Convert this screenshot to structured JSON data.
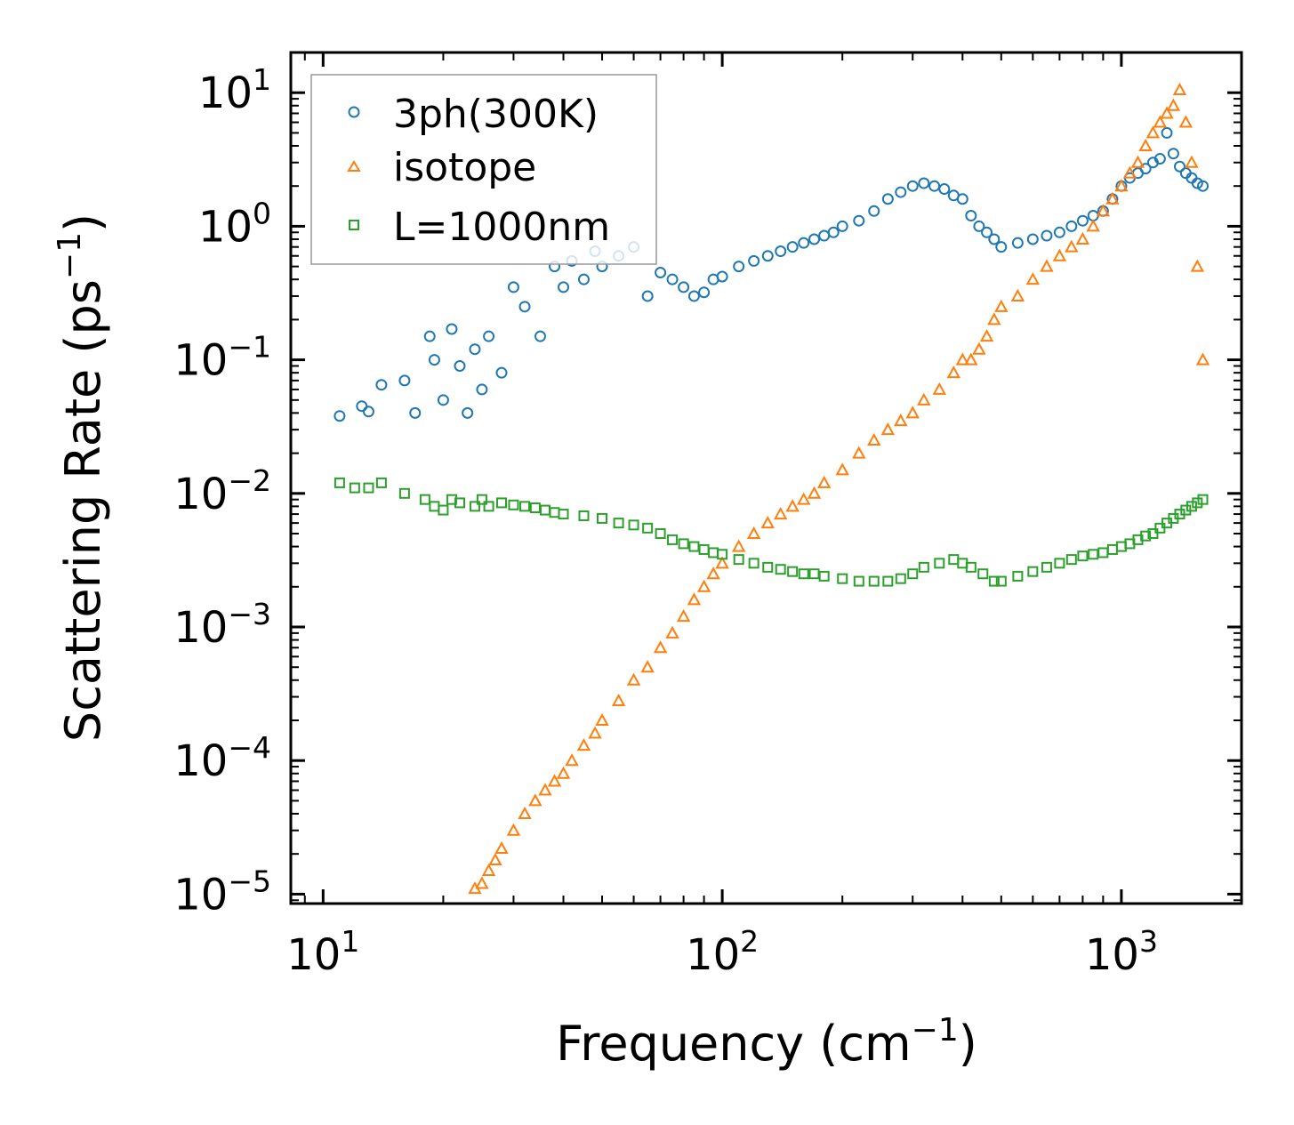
{
  "chart_data": {
    "type": "scatter",
    "xscale": "log",
    "yscale": "log",
    "xlim": [
      8.3,
      2000
    ],
    "ylim": [
      8.5e-06,
      20
    ],
    "xlabel": "Frequency (cm",
    "xlabel_exp": "−1",
    "xlabel_close": ")",
    "ylabel": "Scattering Rate (ps",
    "ylabel_exp": "−1",
    "ylabel_close": ")",
    "xticks": [
      {
        "value": 10,
        "base": "10",
        "exp": "1"
      },
      {
        "value": 100,
        "base": "10",
        "exp": "2"
      },
      {
        "value": 1000,
        "base": "10",
        "exp": "3"
      }
    ],
    "yticks": [
      {
        "value": 10,
        "base": "10",
        "exp": "1"
      },
      {
        "value": 1,
        "base": "10",
        "exp": "0"
      },
      {
        "value": 0.1,
        "base": "10",
        "exp": "−1"
      },
      {
        "value": 0.01,
        "base": "10",
        "exp": "−2"
      },
      {
        "value": 0.001,
        "base": "10",
        "exp": "−3"
      },
      {
        "value": 0.0001,
        "base": "10",
        "exp": "−4"
      },
      {
        "value": 1e-05,
        "base": "10",
        "exp": "−5"
      }
    ],
    "legend": {
      "position": "top-left"
    },
    "series": [
      {
        "name": "3ph(300K)",
        "marker": "circle",
        "color": "#1f77b4",
        "x": [
          11,
          12.5,
          13,
          14,
          16,
          17,
          18.5,
          19,
          20,
          21,
          22,
          23,
          24,
          25,
          26,
          28,
          30,
          32,
          35,
          38,
          40,
          42,
          45,
          48,
          50,
          55,
          60,
          65,
          70,
          75,
          80,
          85,
          90,
          95,
          100,
          110,
          120,
          130,
          140,
          150,
          160,
          170,
          180,
          190,
          200,
          220,
          240,
          260,
          280,
          300,
          320,
          340,
          360,
          380,
          400,
          420,
          440,
          460,
          480,
          500,
          550,
          600,
          650,
          700,
          750,
          800,
          850,
          900,
          950,
          1000,
          1050,
          1100,
          1150,
          1200,
          1250,
          1300,
          1350,
          1400,
          1450,
          1500,
          1550,
          1600
        ],
        "y": [
          0.038,
          0.045,
          0.041,
          0.065,
          0.07,
          0.04,
          0.15,
          0.1,
          0.05,
          0.17,
          0.09,
          0.04,
          0.12,
          0.06,
          0.15,
          0.08,
          0.35,
          0.25,
          0.15,
          0.5,
          0.35,
          0.55,
          0.4,
          0.65,
          0.5,
          0.6,
          0.7,
          0.3,
          0.45,
          0.4,
          0.35,
          0.3,
          0.32,
          0.4,
          0.42,
          0.5,
          0.55,
          0.6,
          0.65,
          0.7,
          0.75,
          0.8,
          0.85,
          0.9,
          1.0,
          1.1,
          1.3,
          1.6,
          1.8,
          2.0,
          2.1,
          2.0,
          1.9,
          1.7,
          1.6,
          1.2,
          1.0,
          0.9,
          0.8,
          0.7,
          0.75,
          0.8,
          0.85,
          0.9,
          1.0,
          1.1,
          1.2,
          1.3,
          1.6,
          2.0,
          2.3,
          2.5,
          2.7,
          3.0,
          3.2,
          5.0,
          3.5,
          2.8,
          2.5,
          2.3,
          2.1,
          2.0
        ]
      },
      {
        "name": "isotope",
        "marker": "triangle",
        "color": "#ff7f0e",
        "x": [
          24,
          25,
          26,
          27,
          28,
          30,
          32,
          34,
          36,
          38,
          40,
          42,
          45,
          48,
          50,
          55,
          60,
          65,
          70,
          75,
          80,
          85,
          90,
          95,
          100,
          110,
          120,
          130,
          140,
          150,
          160,
          170,
          180,
          200,
          220,
          240,
          260,
          280,
          300,
          320,
          350,
          380,
          400,
          420,
          440,
          460,
          480,
          500,
          550,
          600,
          650,
          700,
          750,
          800,
          850,
          900,
          950,
          1000,
          1050,
          1100,
          1150,
          1200,
          1250,
          1300,
          1350,
          1400,
          1450,
          1500,
          1550,
          1600
        ],
        "y": [
          1.1e-05,
          1.2e-05,
          1.5e-05,
          1.8e-05,
          2.2e-05,
          3e-05,
          4e-05,
          5e-05,
          6e-05,
          7e-05,
          8e-05,
          0.0001,
          0.00013,
          0.00016,
          0.0002,
          0.00028,
          0.0004,
          0.0005,
          0.0007,
          0.0009,
          0.0012,
          0.0016,
          0.002,
          0.0025,
          0.003,
          0.004,
          0.005,
          0.006,
          0.007,
          0.008,
          0.009,
          0.01,
          0.012,
          0.015,
          0.02,
          0.025,
          0.03,
          0.035,
          0.04,
          0.05,
          0.06,
          0.08,
          0.1,
          0.1,
          0.12,
          0.15,
          0.2,
          0.25,
          0.3,
          0.4,
          0.5,
          0.6,
          0.7,
          0.8,
          1.0,
          1.3,
          1.6,
          2.0,
          2.5,
          3.0,
          4.0,
          5.0,
          6.0,
          7.0,
          8.0,
          10.5,
          6.0,
          3.0,
          0.5,
          0.1
        ]
      },
      {
        "name": "L=1000nm",
        "marker": "square",
        "color": "#2ca02c",
        "x": [
          11,
          12,
          13,
          14,
          16,
          18,
          19,
          20,
          21,
          22,
          24,
          25,
          26,
          28,
          30,
          32,
          34,
          36,
          38,
          40,
          45,
          50,
          55,
          60,
          65,
          70,
          75,
          80,
          85,
          90,
          95,
          100,
          110,
          120,
          130,
          140,
          150,
          160,
          170,
          180,
          200,
          220,
          240,
          260,
          280,
          300,
          320,
          350,
          380,
          400,
          420,
          450,
          480,
          500,
          550,
          600,
          650,
          700,
          750,
          800,
          850,
          900,
          950,
          1000,
          1050,
          1100,
          1150,
          1200,
          1250,
          1300,
          1350,
          1400,
          1450,
          1500,
          1550,
          1600
        ],
        "y": [
          0.012,
          0.011,
          0.011,
          0.012,
          0.01,
          0.009,
          0.008,
          0.0075,
          0.009,
          0.0085,
          0.008,
          0.009,
          0.008,
          0.0085,
          0.0082,
          0.008,
          0.0078,
          0.0075,
          0.0072,
          0.007,
          0.0068,
          0.0065,
          0.006,
          0.0058,
          0.0055,
          0.005,
          0.0045,
          0.0042,
          0.004,
          0.0038,
          0.0036,
          0.0035,
          0.0032,
          0.003,
          0.0028,
          0.0027,
          0.0026,
          0.0025,
          0.0025,
          0.0024,
          0.0023,
          0.0022,
          0.0022,
          0.0022,
          0.0023,
          0.0025,
          0.0028,
          0.003,
          0.0032,
          0.003,
          0.0028,
          0.0025,
          0.0022,
          0.0022,
          0.0024,
          0.0026,
          0.0028,
          0.003,
          0.0032,
          0.0034,
          0.0035,
          0.0036,
          0.0038,
          0.004,
          0.0042,
          0.0045,
          0.0048,
          0.005,
          0.0055,
          0.006,
          0.0065,
          0.007,
          0.0075,
          0.008,
          0.0085,
          0.009
        ]
      }
    ]
  }
}
